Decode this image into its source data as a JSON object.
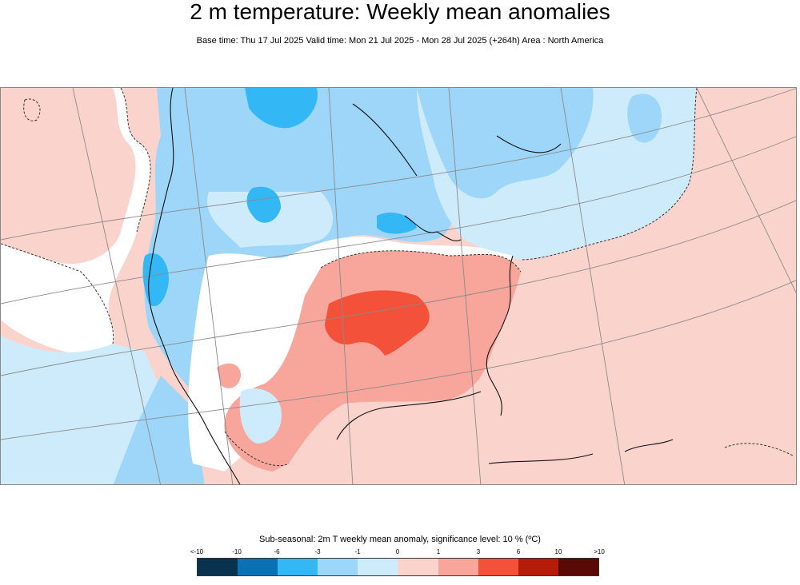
{
  "header": {
    "title": "2 m temperature: Weekly mean anomalies",
    "subtitle": "Base time: Thu 17 Jul 2025 Valid time: Mon 21 Jul 2025 - Mon 28 Jul 2025 (+264h) Area : North America"
  },
  "legend": {
    "title": "Sub-seasonal: 2m T weekly mean anomaly, significance level: 10 % (ºC)",
    "ticks": [
      "<-10",
      "-10",
      "-6",
      "-3",
      "-1",
      "0",
      "1",
      "3",
      "6",
      "10",
      ">10"
    ],
    "colors": [
      "#08324e",
      "#0a72b4",
      "#33b8f5",
      "#9dd6f8",
      "#cdebfb",
      "#fbd3cd",
      "#f8a69b",
      "#f4513a",
      "#b51c09",
      "#5a0a06"
    ]
  }
}
